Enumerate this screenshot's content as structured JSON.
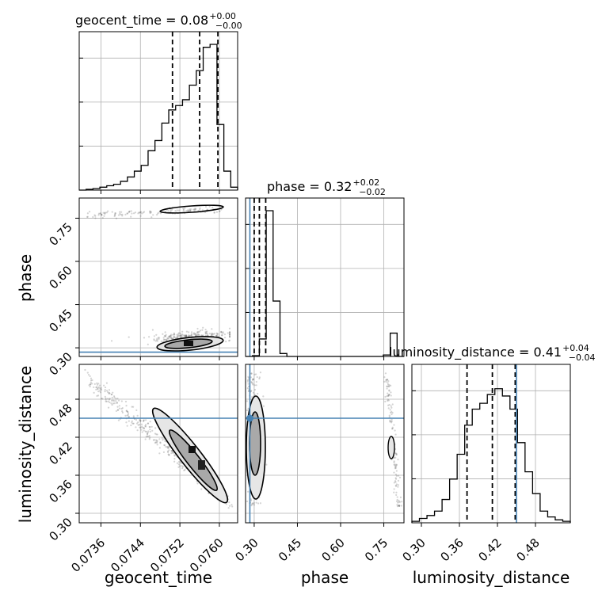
{
  "chart_data": {
    "type": "corner",
    "parameters": [
      {
        "name": "geocent_time",
        "title": "geocent_time = 0.08",
        "title_sup": "+0.00",
        "title_sub": "−0.00",
        "xlabel": "geocent_time",
        "ticks": [
          0.0736,
          0.0744,
          0.0752,
          0.076
        ],
        "tick_labels": [
          "0.0736",
          "0.0744",
          "0.0752",
          "0.0760"
        ],
        "range": [
          0.07316,
          0.07637
        ],
        "quantiles": [
          0.07505,
          0.0756,
          0.07597
        ],
        "truth": null,
        "hist_edges": [
          0.07316,
          0.07637
        ],
        "hist": [
          0,
          0.005,
          0.01,
          0.02,
          0.03,
          0.04,
          0.06,
          0.09,
          0.13,
          0.17,
          0.27,
          0.34,
          0.46,
          0.55,
          0.58,
          0.62,
          0.72,
          0.82,
          0.98,
          1.0,
          0.45,
          0.13,
          0.02
        ]
      },
      {
        "name": "phase",
        "title": "phase = 0.32",
        "title_sup": "+0.02",
        "title_sub": "−0.02",
        "ylabel": "phase",
        "xlabel": "phase",
        "ticks": [
          0.3,
          0.45,
          0.6,
          0.75
        ],
        "tick_labels": [
          "0.30",
          "0.45",
          "0.60",
          "0.75"
        ],
        "range": [
          0.27,
          0.82
        ],
        "quantiles": [
          0.3,
          0.318,
          0.34
        ],
        "truth": 0.285,
        "hist_edges": [
          0.27,
          0.82
        ],
        "hist": [
          0,
          0.005,
          0.12,
          1.0,
          0.38,
          0.02,
          0,
          0,
          0,
          0,
          0,
          0,
          0,
          0,
          0,
          0,
          0,
          0,
          0,
          0,
          0.01,
          0.16,
          0
        ]
      },
      {
        "name": "luminosity_distance",
        "title": "luminosity_distance = 0.41",
        "title_sup": "+0.04",
        "title_sub": "−0.04",
        "ylabel": "luminosity_distance",
        "xlabel": "luminosity_distance",
        "ticks": [
          0.3,
          0.36,
          0.42,
          0.48
        ],
        "tick_labels": [
          "0.30",
          "0.36",
          "0.42",
          "0.48"
        ],
        "range": [
          0.285,
          0.535
        ],
        "quantiles": [
          0.372,
          0.412,
          0.448
        ],
        "truth": 0.45,
        "hist_edges": [
          0.285,
          0.535
        ],
        "hist": [
          0.01,
          0.03,
          0.05,
          0.08,
          0.16,
          0.3,
          0.47,
          0.67,
          0.78,
          0.82,
          0.88,
          0.92,
          0.87,
          0.78,
          0.55,
          0.35,
          0.2,
          0.08,
          0.04,
          0.02,
          0.01
        ]
      }
    ],
    "marginal_orientation": "vertical",
    "grid": true,
    "truth_color": "#4682b4"
  }
}
